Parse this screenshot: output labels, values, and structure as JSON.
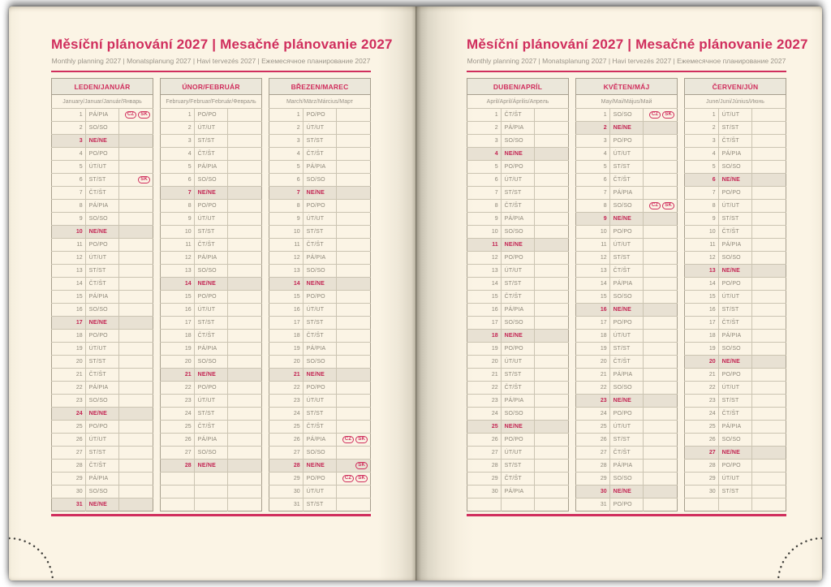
{
  "colors": {
    "accent": "#d02e5d",
    "sunday_text": "#c32553",
    "sunday_bg": "#e8e1d3",
    "header_bg": "#ebe7da",
    "paper": "#fbf4e5"
  },
  "page_title": "Měsíční plánování 2027 | Mesačné plánovanie 2027",
  "page_subtitle": "Monthly planning 2027 | Monatsplanung 2027 | Havi tervezés 2027 | Ежемесячное планирование 2027",
  "holiday_badge_labels": [
    "CZ",
    "SK"
  ],
  "sunday_abbr": "NE/NE",
  "row_slots": 31,
  "months": [
    {
      "name": "LEDEN/JANUÁR",
      "subtitle": "January/Januar/Január/Январь",
      "days": [
        [
          1,
          "PÁ/PIA",
          [
            "CZ",
            "SK"
          ]
        ],
        [
          2,
          "SO/SO"
        ],
        [
          3,
          "NE/NE"
        ],
        [
          4,
          "PO/PO"
        ],
        [
          5,
          "ÚT/UT"
        ],
        [
          6,
          "ST/ST",
          [
            "SK"
          ]
        ],
        [
          7,
          "ČT/ŠT"
        ],
        [
          8,
          "PÁ/PIA"
        ],
        [
          9,
          "SO/SO"
        ],
        [
          10,
          "NE/NE"
        ],
        [
          11,
          "PO/PO"
        ],
        [
          12,
          "ÚT/UT"
        ],
        [
          13,
          "ST/ST"
        ],
        [
          14,
          "ČT/ŠT"
        ],
        [
          15,
          "PÁ/PIA"
        ],
        [
          16,
          "SO/SO"
        ],
        [
          17,
          "NE/NE"
        ],
        [
          18,
          "PO/PO"
        ],
        [
          19,
          "ÚT/UT"
        ],
        [
          20,
          "ST/ST"
        ],
        [
          21,
          "ČT/ŠT"
        ],
        [
          22,
          "PÁ/PIA"
        ],
        [
          23,
          "SO/SO"
        ],
        [
          24,
          "NE/NE"
        ],
        [
          25,
          "PO/PO"
        ],
        [
          26,
          "ÚT/UT"
        ],
        [
          27,
          "ST/ST"
        ],
        [
          28,
          "ČT/ŠT"
        ],
        [
          29,
          "PÁ/PIA"
        ],
        [
          30,
          "SO/SO"
        ],
        [
          31,
          "NE/NE"
        ]
      ]
    },
    {
      "name": "ÚNOR/FEBRUÁR",
      "subtitle": "February/Februar/Február/Февраль",
      "days": [
        [
          1,
          "PO/PO"
        ],
        [
          2,
          "ÚT/UT"
        ],
        [
          3,
          "ST/ST"
        ],
        [
          4,
          "ČT/ŠT"
        ],
        [
          5,
          "PÁ/PIA"
        ],
        [
          6,
          "SO/SO"
        ],
        [
          7,
          "NE/NE"
        ],
        [
          8,
          "PO/PO"
        ],
        [
          9,
          "ÚT/UT"
        ],
        [
          10,
          "ST/ST"
        ],
        [
          11,
          "ČT/ŠT"
        ],
        [
          12,
          "PÁ/PIA"
        ],
        [
          13,
          "SO/SO"
        ],
        [
          14,
          "NE/NE"
        ],
        [
          15,
          "PO/PO"
        ],
        [
          16,
          "ÚT/UT"
        ],
        [
          17,
          "ST/ST"
        ],
        [
          18,
          "ČT/ŠT"
        ],
        [
          19,
          "PÁ/PIA"
        ],
        [
          20,
          "SO/SO"
        ],
        [
          21,
          "NE/NE"
        ],
        [
          22,
          "PO/PO"
        ],
        [
          23,
          "ÚT/UT"
        ],
        [
          24,
          "ST/ST"
        ],
        [
          25,
          "ČT/ŠT"
        ],
        [
          26,
          "PÁ/PIA"
        ],
        [
          27,
          "SO/SO"
        ],
        [
          28,
          "NE/NE"
        ]
      ]
    },
    {
      "name": "BŘEZEN/MAREC",
      "subtitle": "March/März/Március/Март",
      "days": [
        [
          1,
          "PO/PO"
        ],
        [
          2,
          "ÚT/UT"
        ],
        [
          3,
          "ST/ST"
        ],
        [
          4,
          "ČT/ŠT"
        ],
        [
          5,
          "PÁ/PIA"
        ],
        [
          6,
          "SO/SO"
        ],
        [
          7,
          "NE/NE"
        ],
        [
          8,
          "PO/PO"
        ],
        [
          9,
          "ÚT/UT"
        ],
        [
          10,
          "ST/ST"
        ],
        [
          11,
          "ČT/ŠT"
        ],
        [
          12,
          "PÁ/PIA"
        ],
        [
          13,
          "SO/SO"
        ],
        [
          14,
          "NE/NE"
        ],
        [
          15,
          "PO/PO"
        ],
        [
          16,
          "ÚT/UT"
        ],
        [
          17,
          "ST/ST"
        ],
        [
          18,
          "ČT/ŠT"
        ],
        [
          19,
          "PÁ/PIA"
        ],
        [
          20,
          "SO/SO"
        ],
        [
          21,
          "NE/NE"
        ],
        [
          22,
          "PO/PO"
        ],
        [
          23,
          "ÚT/UT"
        ],
        [
          24,
          "ST/ST"
        ],
        [
          25,
          "ČT/ŠT"
        ],
        [
          26,
          "PÁ/PIA",
          [
            "CZ",
            "SK"
          ]
        ],
        [
          27,
          "SO/SO"
        ],
        [
          28,
          "NE/NE",
          [
            "SK"
          ]
        ],
        [
          29,
          "PO/PO",
          [
            "CZ",
            "SK"
          ]
        ],
        [
          30,
          "ÚT/UT"
        ],
        [
          31,
          "ST/ST"
        ]
      ]
    },
    {
      "name": "DUBEN/APRÍL",
      "subtitle": "April/April/Április/Апрель",
      "days": [
        [
          1,
          "ČT/ŠT"
        ],
        [
          2,
          "PÁ/PIA"
        ],
        [
          3,
          "SO/SO"
        ],
        [
          4,
          "NE/NE"
        ],
        [
          5,
          "PO/PO"
        ],
        [
          6,
          "ÚT/UT"
        ],
        [
          7,
          "ST/ST"
        ],
        [
          8,
          "ČT/ŠT"
        ],
        [
          9,
          "PÁ/PIA"
        ],
        [
          10,
          "SO/SO"
        ],
        [
          11,
          "NE/NE"
        ],
        [
          12,
          "PO/PO"
        ],
        [
          13,
          "ÚT/UT"
        ],
        [
          14,
          "ST/ST"
        ],
        [
          15,
          "ČT/ŠT"
        ],
        [
          16,
          "PÁ/PIA"
        ],
        [
          17,
          "SO/SO"
        ],
        [
          18,
          "NE/NE"
        ],
        [
          19,
          "PO/PO"
        ],
        [
          20,
          "ÚT/UT"
        ],
        [
          21,
          "ST/ST"
        ],
        [
          22,
          "ČT/ŠT"
        ],
        [
          23,
          "PÁ/PIA"
        ],
        [
          24,
          "SO/SO"
        ],
        [
          25,
          "NE/NE"
        ],
        [
          26,
          "PO/PO"
        ],
        [
          27,
          "ÚT/UT"
        ],
        [
          28,
          "ST/ST"
        ],
        [
          29,
          "ČT/ŠT"
        ],
        [
          30,
          "PÁ/PIA"
        ]
      ]
    },
    {
      "name": "KVĚTEN/MÁJ",
      "subtitle": "May/Mai/Május/Май",
      "days": [
        [
          1,
          "SO/SO",
          [
            "CZ",
            "SK"
          ]
        ],
        [
          2,
          "NE/NE"
        ],
        [
          3,
          "PO/PO"
        ],
        [
          4,
          "ÚT/UT"
        ],
        [
          5,
          "ST/ST"
        ],
        [
          6,
          "ČT/ŠT"
        ],
        [
          7,
          "PÁ/PIA"
        ],
        [
          8,
          "SO/SO",
          [
            "CZ",
            "SK"
          ]
        ],
        [
          9,
          "NE/NE"
        ],
        [
          10,
          "PO/PO"
        ],
        [
          11,
          "ÚT/UT"
        ],
        [
          12,
          "ST/ST"
        ],
        [
          13,
          "ČT/ŠT"
        ],
        [
          14,
          "PÁ/PIA"
        ],
        [
          15,
          "SO/SO"
        ],
        [
          16,
          "NE/NE"
        ],
        [
          17,
          "PO/PO"
        ],
        [
          18,
          "ÚT/UT"
        ],
        [
          19,
          "ST/ST"
        ],
        [
          20,
          "ČT/ŠT"
        ],
        [
          21,
          "PÁ/PIA"
        ],
        [
          22,
          "SO/SO"
        ],
        [
          23,
          "NE/NE"
        ],
        [
          24,
          "PO/PO"
        ],
        [
          25,
          "ÚT/UT"
        ],
        [
          26,
          "ST/ST"
        ],
        [
          27,
          "ČT/ŠT"
        ],
        [
          28,
          "PÁ/PIA"
        ],
        [
          29,
          "SO/SO"
        ],
        [
          30,
          "NE/NE"
        ],
        [
          31,
          "PO/PO"
        ]
      ]
    },
    {
      "name": "ČERVEN/JÚN",
      "subtitle": "June/Juni/Június/Июнь",
      "days": [
        [
          1,
          "ÚT/UT"
        ],
        [
          2,
          "ST/ST"
        ],
        [
          3,
          "ČT/ŠT"
        ],
        [
          4,
          "PÁ/PIA"
        ],
        [
          5,
          "SO/SO"
        ],
        [
          6,
          "NE/NE"
        ],
        [
          7,
          "PO/PO"
        ],
        [
          8,
          "ÚT/UT"
        ],
        [
          9,
          "ST/ST"
        ],
        [
          10,
          "ČT/ŠT"
        ],
        [
          11,
          "PÁ/PIA"
        ],
        [
          12,
          "SO/SO"
        ],
        [
          13,
          "NE/NE"
        ],
        [
          14,
          "PO/PO"
        ],
        [
          15,
          "ÚT/UT"
        ],
        [
          16,
          "ST/ST"
        ],
        [
          17,
          "ČT/ŠT"
        ],
        [
          18,
          "PÁ/PIA"
        ],
        [
          19,
          "SO/SO"
        ],
        [
          20,
          "NE/NE"
        ],
        [
          21,
          "PO/PO"
        ],
        [
          22,
          "ÚT/UT"
        ],
        [
          23,
          "ST/ST"
        ],
        [
          24,
          "ČT/ŠT"
        ],
        [
          25,
          "PÁ/PIA"
        ],
        [
          26,
          "SO/SO"
        ],
        [
          27,
          "NE/NE"
        ],
        [
          28,
          "PO/PO"
        ],
        [
          29,
          "ÚT/UT"
        ],
        [
          30,
          "ST/ST"
        ]
      ]
    }
  ]
}
